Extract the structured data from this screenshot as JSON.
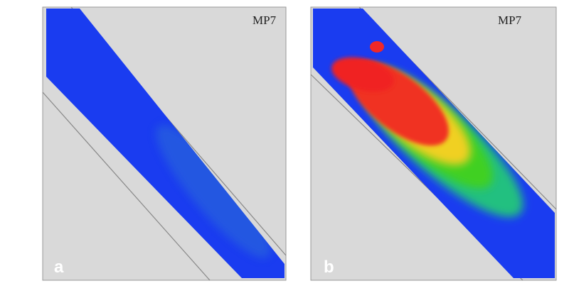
{
  "panels": [
    {
      "label": "a",
      "title": "MP7"
    },
    {
      "label": "b",
      "title": "MP7"
    }
  ]
}
